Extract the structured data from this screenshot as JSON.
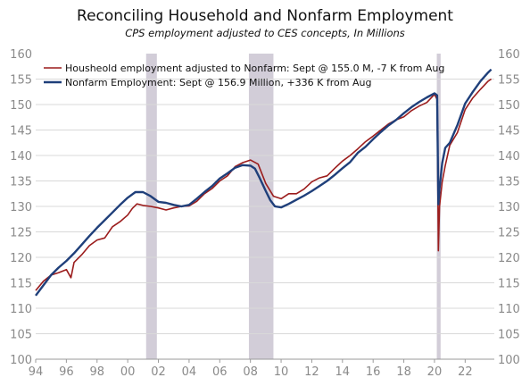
{
  "chart_data": {
    "type": "line",
    "title": "Reconciling Household and Nonfarm Employment",
    "subtitle": "CPS employment adjusted to CES concepts, In Millions",
    "ylim": [
      100,
      160
    ],
    "yticks": [
      "100",
      "105",
      "110",
      "115",
      "120",
      "125",
      "130",
      "135",
      "140",
      "145",
      "150",
      "155",
      "160"
    ],
    "xlim": [
      1994,
      2023.9
    ],
    "xticks": [
      {
        "x": 1994,
        "label": "94"
      },
      {
        "x": 1996,
        "label": "96"
      },
      {
        "x": 1998,
        "label": "98"
      },
      {
        "x": 2000,
        "label": "00"
      },
      {
        "x": 2002,
        "label": "02"
      },
      {
        "x": 2004,
        "label": "04"
      },
      {
        "x": 2006,
        "label": "06"
      },
      {
        "x": 2008,
        "label": "08"
      },
      {
        "x": 2010,
        "label": "10"
      },
      {
        "x": 2012,
        "label": "12"
      },
      {
        "x": 2014,
        "label": "14"
      },
      {
        "x": 2016,
        "label": "16"
      },
      {
        "x": 2018,
        "label": "18"
      },
      {
        "x": 2020,
        "label": "20"
      },
      {
        "x": 2022,
        "label": "22"
      }
    ],
    "recessions": [
      [
        2001.2,
        2001.9
      ],
      [
        2007.9,
        2009.5
      ],
      [
        2020.15,
        2020.4
      ]
    ],
    "grid": true,
    "legend_position": "top-left",
    "series": [
      {
        "name": "Housheold employment adjusted to Nonfarm: Sept @ 155.0 M, -7 K from Aug",
        "color": "#9b1c1c",
        "x": [
          1994.0,
          1994.5,
          1995.0,
          1995.5,
          1996.0,
          1996.3,
          1996.5,
          1997.0,
          1997.5,
          1998.0,
          1998.5,
          1999.0,
          1999.5,
          2000.0,
          2000.3,
          2000.6,
          2001.0,
          2001.5,
          2002.0,
          2002.5,
          2003.0,
          2003.5,
          2004.0,
          2004.5,
          2005.0,
          2005.5,
          2006.0,
          2006.5,
          2007.0,
          2007.5,
          2008.0,
          2008.5,
          2009.0,
          2009.5,
          2010.0,
          2010.5,
          2011.0,
          2011.5,
          2012.0,
          2012.5,
          2013.0,
          2013.5,
          2014.0,
          2014.5,
          2015.0,
          2015.5,
          2016.0,
          2016.5,
          2017.0,
          2017.5,
          2018.0,
          2018.5,
          2019.0,
          2019.5,
          2020.0,
          2020.17,
          2020.25,
          2020.33,
          2020.5,
          2020.7,
          2021.0,
          2021.5,
          2022.0,
          2022.5,
          2023.0,
          2023.5,
          2023.7
        ],
        "values": [
          113.5,
          115.3,
          116.5,
          117.0,
          117.6,
          116.0,
          119.0,
          120.5,
          122.3,
          123.4,
          123.8,
          126.0,
          127.0,
          128.3,
          129.6,
          130.5,
          130.2,
          130.0,
          129.7,
          129.3,
          129.7,
          130.0,
          130.1,
          131.0,
          132.5,
          133.5,
          135.0,
          136.0,
          137.8,
          138.6,
          139.1,
          138.3,
          134.5,
          132.0,
          131.5,
          132.5,
          132.5,
          133.4,
          134.8,
          135.6,
          136.0,
          137.5,
          138.9,
          140.0,
          141.3,
          142.7,
          143.8,
          145.0,
          146.2,
          147.0,
          147.6,
          148.8,
          149.7,
          150.4,
          152.0,
          151.0,
          121.3,
          130.0,
          134.8,
          138.0,
          142.0,
          144.5,
          149.0,
          151.3,
          153.0,
          154.6,
          155.0
        ]
      },
      {
        "name": "Nonfarm Employment: Sept @ 156.9 Million, +336 K from Aug",
        "color": "#1f3f7a",
        "x": [
          1994.0,
          1994.5,
          1995.0,
          1995.5,
          1996.0,
          1996.5,
          1997.0,
          1997.5,
          1998.0,
          1998.5,
          1999.0,
          1999.5,
          2000.0,
          2000.5,
          2001.0,
          2001.5,
          2002.0,
          2002.5,
          2003.0,
          2003.5,
          2004.0,
          2004.5,
          2005.0,
          2005.5,
          2006.0,
          2006.5,
          2007.0,
          2007.5,
          2008.0,
          2008.3,
          2008.6,
          2009.0,
          2009.3,
          2009.6,
          2010.0,
          2010.5,
          2011.0,
          2011.5,
          2012.0,
          2012.5,
          2013.0,
          2013.5,
          2014.0,
          2014.5,
          2015.0,
          2015.5,
          2016.0,
          2016.5,
          2017.0,
          2017.5,
          2018.0,
          2018.5,
          2019.0,
          2019.5,
          2020.0,
          2020.17,
          2020.25,
          2020.33,
          2020.5,
          2020.7,
          2021.0,
          2021.5,
          2022.0,
          2022.5,
          2023.0,
          2023.5,
          2023.7
        ],
        "values": [
          112.5,
          114.5,
          116.5,
          118.0,
          119.3,
          120.8,
          122.5,
          124.2,
          125.8,
          127.3,
          128.8,
          130.3,
          131.7,
          132.8,
          132.8,
          132.0,
          130.9,
          130.7,
          130.3,
          130.0,
          130.3,
          131.5,
          132.8,
          134.0,
          135.5,
          136.5,
          137.6,
          138.1,
          138.0,
          137.4,
          135.6,
          133.0,
          131.2,
          130.0,
          129.8,
          130.5,
          131.3,
          132.1,
          133.0,
          134.0,
          135.0,
          136.2,
          137.5,
          138.7,
          140.5,
          141.7,
          143.2,
          144.6,
          145.9,
          147.0,
          148.3,
          149.5,
          150.5,
          151.4,
          152.2,
          151.8,
          130.4,
          133.5,
          138.5,
          141.5,
          142.5,
          146.0,
          150.2,
          152.5,
          154.6,
          156.3,
          156.9
        ]
      }
    ]
  }
}
